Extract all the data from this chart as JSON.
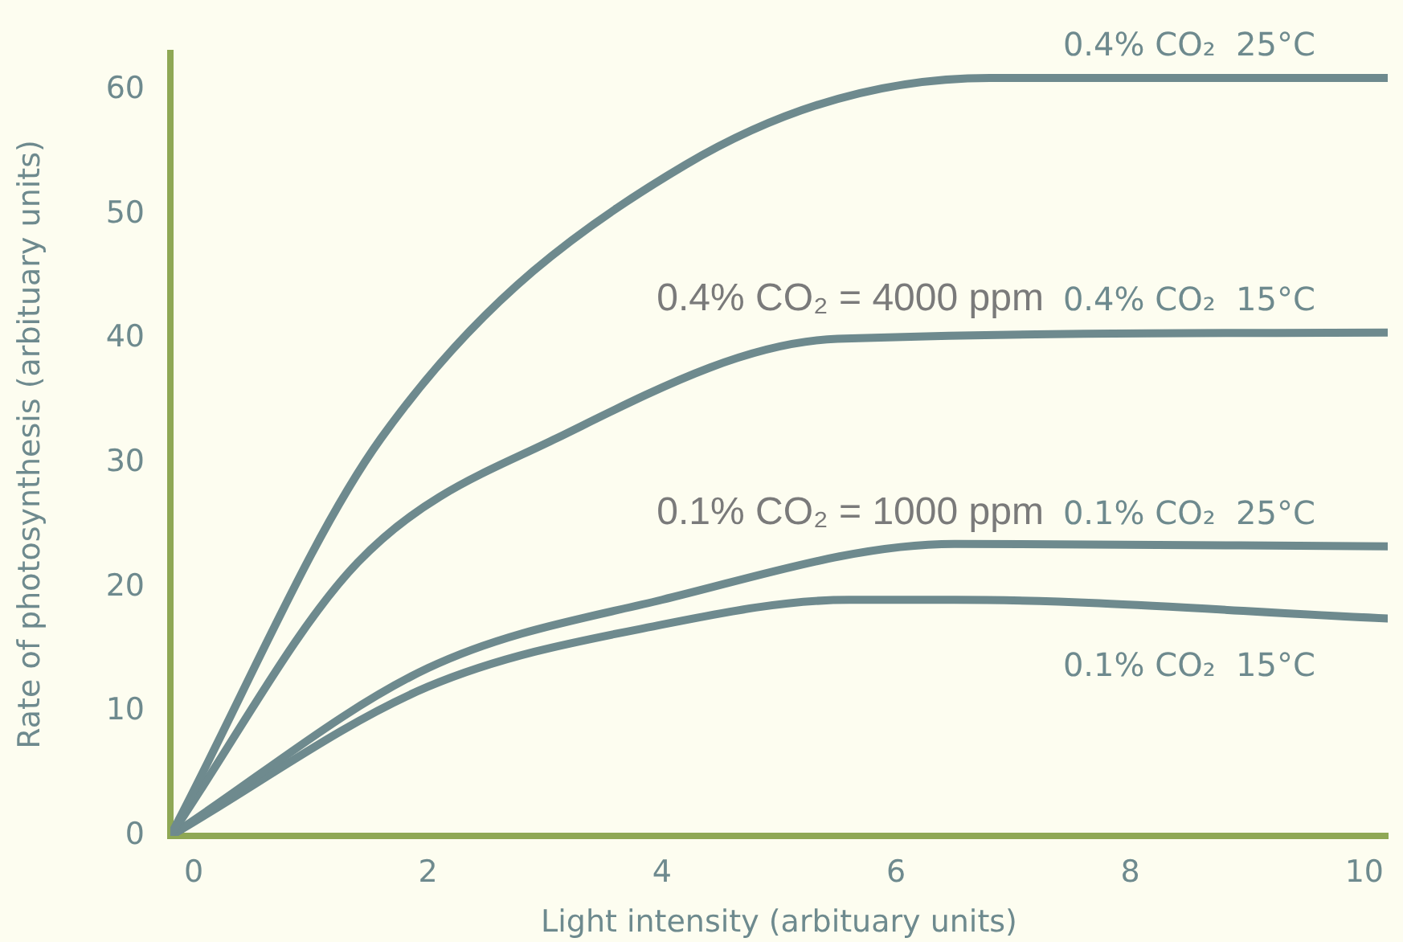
{
  "chart_data": {
    "type": "line",
    "xlabel": "Light intensity (arbituary units)",
    "ylabel": "Rate of photosynthesis (arbituary units)",
    "xlim": [
      -0.2,
      10.2
    ],
    "xticks": [
      0,
      2,
      4,
      6,
      8,
      10
    ],
    "ylim": [
      0,
      63
    ],
    "yticks": [
      0,
      10,
      20,
      30,
      40,
      50,
      60
    ],
    "grid": false,
    "legend": false,
    "marker": "none",
    "line_style": "solid",
    "series": [
      {
        "name": "0.4% CO₂  25°C",
        "color": "#6e8a8e",
        "x": [
          -0.2,
          1.6,
          4.2,
          6.8,
          10.2
        ],
        "values": [
          0,
          32,
          54,
          61,
          61
        ]
      },
      {
        "name": "0.4% CO₂  15°C",
        "color": "#6e8a8e",
        "x": [
          -0.2,
          1.4,
          3.1,
          5.5,
          10.2
        ],
        "values": [
          0,
          22,
          32,
          40,
          40.5
        ]
      },
      {
        "name": "0.1% CO₂  25°C",
        "color": "#6e8a8e",
        "x": [
          -0.2,
          2,
          4,
          6.5,
          10.2
        ],
        "values": [
          0,
          13.5,
          19,
          23.5,
          23.3
        ]
      },
      {
        "name": "0.1% CO₂  15°C",
        "color": "#6e8a8e",
        "x": [
          -0.2,
          2,
          4,
          5.6,
          6.5,
          10.2
        ],
        "values": [
          0,
          12,
          17,
          19,
          19,
          17.5
        ]
      }
    ],
    "annotations": [
      "0.4% CO₂ = 4000 ppm",
      "0.1% CO₂ = 1000 ppm"
    ]
  }
}
